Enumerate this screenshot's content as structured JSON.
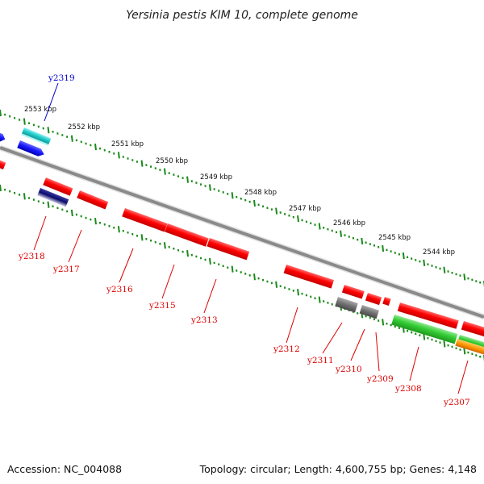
{
  "title": "Yersinia pestis KIM 10, complete genome",
  "footer": {
    "accession": "Accession: NC_004088",
    "summary": "Topology: circular; Length: 4,600,755 bp; Genes: 4,148"
  },
  "ruler_labels": [
    "2553 kbp",
    "2552 kbp",
    "2551 kbp",
    "2550 kbp",
    "2549 kbp",
    "2548 kbp",
    "2547 kbp",
    "2546 kbp",
    "2545 kbp",
    "2544 kbp"
  ],
  "gene_labels": [
    {
      "text": "y2319",
      "color": "#0000cc"
    },
    {
      "text": "y2318",
      "color": "#dd0000"
    },
    {
      "text": "y2317",
      "color": "#dd0000"
    },
    {
      "text": "y2316",
      "color": "#dd0000"
    },
    {
      "text": "y2315",
      "color": "#dd0000"
    },
    {
      "text": "y2313",
      "color": "#dd0000"
    },
    {
      "text": "y2312",
      "color": "#dd0000"
    },
    {
      "text": "y2311",
      "color": "#dd0000"
    },
    {
      "text": "y2310",
      "color": "#dd0000"
    },
    {
      "text": "y2309",
      "color": "#dd0000"
    },
    {
      "text": "y2308",
      "color": "#dd0000"
    },
    {
      "text": "y2307",
      "color": "#dd0000"
    }
  ],
  "colors": {
    "backbone": "#8a8a8a",
    "tick": "#1a8a1a",
    "gene_red": "#ff0000",
    "gene_blue": "#1a1aff",
    "gene_cyan": "#22cccc",
    "gene_navy": "#0a0a6a",
    "gene_gray": "#707070",
    "gene_green": "#33cc33",
    "gene_orange": "#ff9900"
  }
}
